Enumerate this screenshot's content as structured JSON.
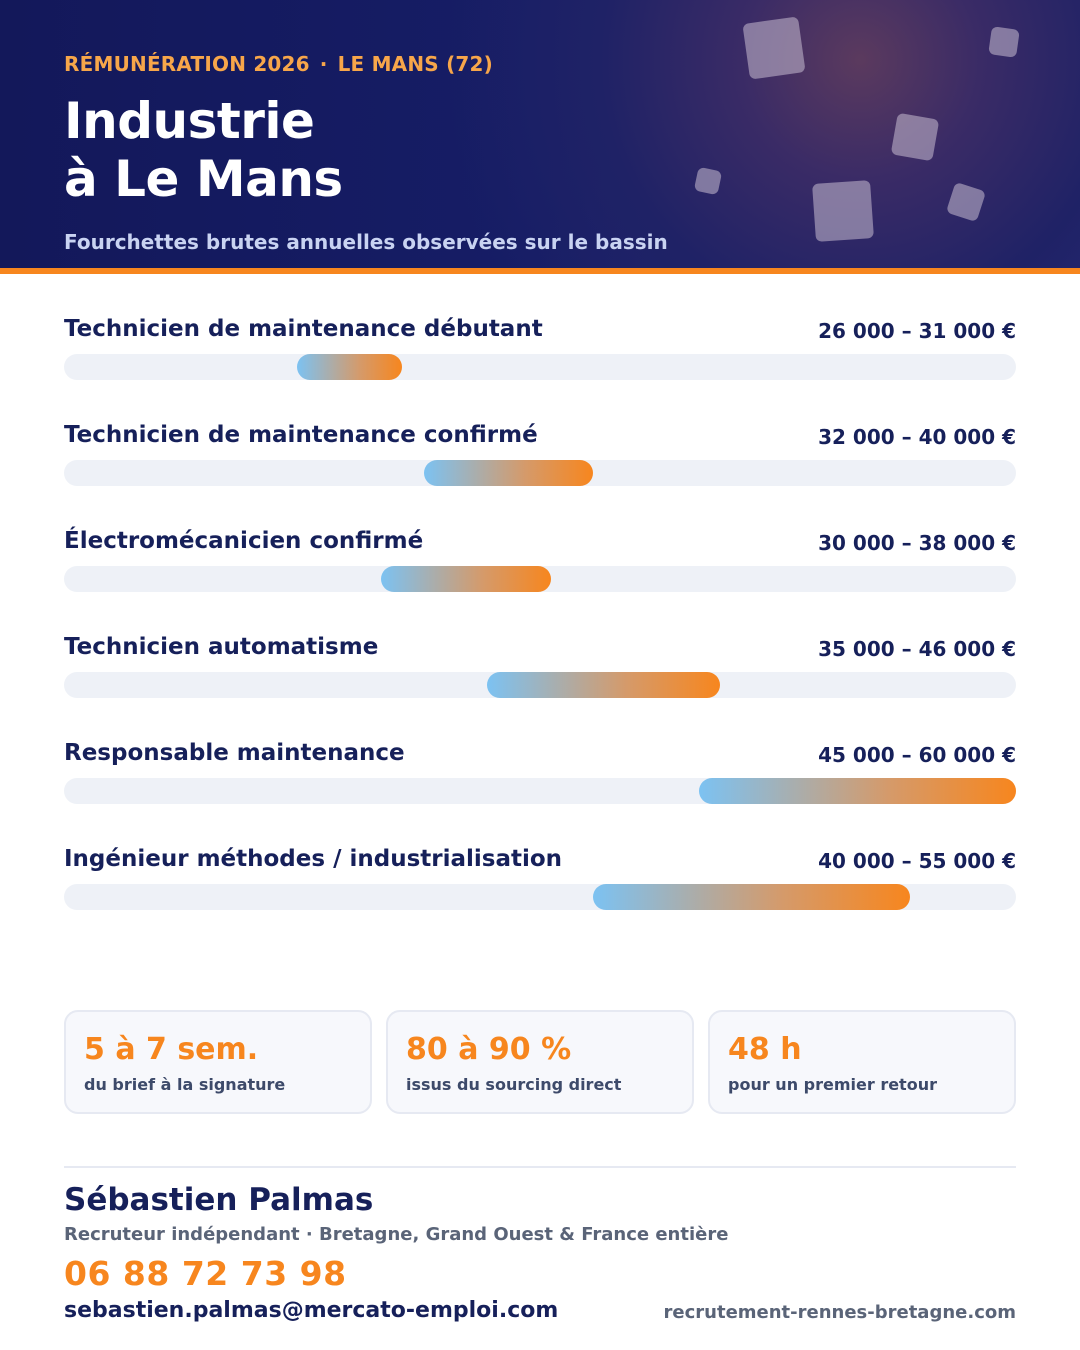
{
  "header": {
    "kicker_left": "RÉMUNÉRATION 2026",
    "kicker_separator": "·",
    "kicker_right": "LE MANS (72)",
    "title_line1": "Industrie",
    "title_line2": "à Le Mans",
    "subtitle": "Fourchettes brutes annuelles observées sur le bassin"
  },
  "colors": {
    "navy": "#16205a",
    "orange": "#f7861e",
    "bar_start": "#7cc2f2",
    "track": "#eef1f7"
  },
  "salaries": {
    "scale_eur": [
      15000,
      60000
    ],
    "rows": [
      {
        "label": "Technicien de maintenance débutant",
        "range": "26 000 – 31 000 €",
        "min": 26000,
        "max": 31000
      },
      {
        "label": "Technicien de maintenance confirmé",
        "range": "32 000 – 40 000 €",
        "min": 32000,
        "max": 40000
      },
      {
        "label": "Électromécanicien confirmé",
        "range": "30 000 – 38 000 €",
        "min": 30000,
        "max": 38000
      },
      {
        "label": "Technicien automatisme",
        "range": "35 000 – 46 000 €",
        "min": 35000,
        "max": 46000
      },
      {
        "label": "Responsable maintenance",
        "range": "45 000 – 60 000 €",
        "min": 45000,
        "max": 60000
      },
      {
        "label": "Ingénieur méthodes / industrialisation",
        "range": "40 000 – 55 000 €",
        "min": 40000,
        "max": 55000
      }
    ]
  },
  "stats": [
    {
      "value": "5 à 7 sem.",
      "caption": "du brief à la signature"
    },
    {
      "value": "80 à 90 %",
      "caption": "issus du sourcing direct"
    },
    {
      "value": "48 h",
      "caption": "pour un premier retour"
    }
  ],
  "contact": {
    "name": "Sébastien Palmas",
    "role": "Recruteur indépendant · Bretagne, Grand Ouest & France entière",
    "phone": "06 88 72 73 98",
    "email": "sebastien.palmas@mercato-emploi.com",
    "website": "recrutement-rennes-bretagne.com"
  }
}
